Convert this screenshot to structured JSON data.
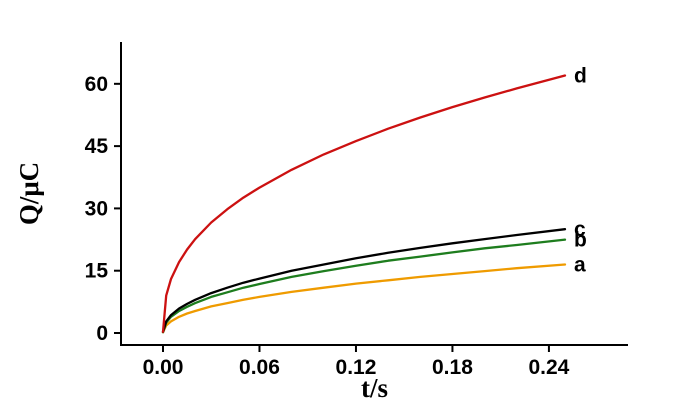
{
  "chart_data": {
    "type": "line",
    "title": "",
    "xlabel": "t/s",
    "ylabel": "Q/μC",
    "xlim": [
      -0.027,
      0.28
    ],
    "ylim": [
      -3,
      70
    ],
    "grid": false,
    "legend_position": "end-of-curve-labels",
    "xticks": [
      {
        "value": 0.0,
        "label": "0.00"
      },
      {
        "value": 0.06,
        "label": "0.06"
      },
      {
        "value": 0.12,
        "label": "0.12"
      },
      {
        "value": 0.18,
        "label": "0.18"
      },
      {
        "value": 0.24,
        "label": "0.24"
      }
    ],
    "yticks": [
      {
        "value": 0,
        "label": "0"
      },
      {
        "value": 15,
        "label": "15"
      },
      {
        "value": 30,
        "label": "30"
      },
      {
        "value": 45,
        "label": "45"
      },
      {
        "value": 60,
        "label": "60"
      }
    ],
    "x": [
      0,
      0.002,
      0.005,
      0.01,
      0.015,
      0.02,
      0.03,
      0.04,
      0.05,
      0.06,
      0.08,
      0.1,
      0.12,
      0.14,
      0.16,
      0.18,
      0.2,
      0.22,
      0.25
    ],
    "series": [
      {
        "name": "a",
        "color": "#ef9b00",
        "values": [
          0.2,
          1.8,
          2.8,
          3.9,
          4.7,
          5.3,
          6.4,
          7.2,
          8.0,
          8.7,
          9.9,
          10.9,
          11.9,
          12.7,
          13.5,
          14.2,
          14.9,
          15.6,
          16.5
        ]
      },
      {
        "name": "b",
        "color": "#1e7d1e",
        "values": [
          0.2,
          2.5,
          3.9,
          5.3,
          6.3,
          7.2,
          8.7,
          9.8,
          10.9,
          11.8,
          13.5,
          14.9,
          16.2,
          17.4,
          18.4,
          19.4,
          20.4,
          21.2,
          22.5
        ]
      },
      {
        "name": "c",
        "color": "#000000",
        "values": [
          0.3,
          2.8,
          4.3,
          5.9,
          7.0,
          8.0,
          9.6,
          10.9,
          12.1,
          13.1,
          15.0,
          16.5,
          18.0,
          19.3,
          20.5,
          21.6,
          22.6,
          23.6,
          25.0
        ]
      },
      {
        "name": "d",
        "color": "#cc1111",
        "values": [
          0.3,
          9.0,
          13.0,
          17.1,
          20.1,
          22.6,
          26.6,
          29.8,
          32.6,
          35.0,
          39.3,
          43.0,
          46.2,
          49.2,
          51.9,
          54.4,
          56.7,
          58.9,
          62.0
        ]
      }
    ]
  }
}
